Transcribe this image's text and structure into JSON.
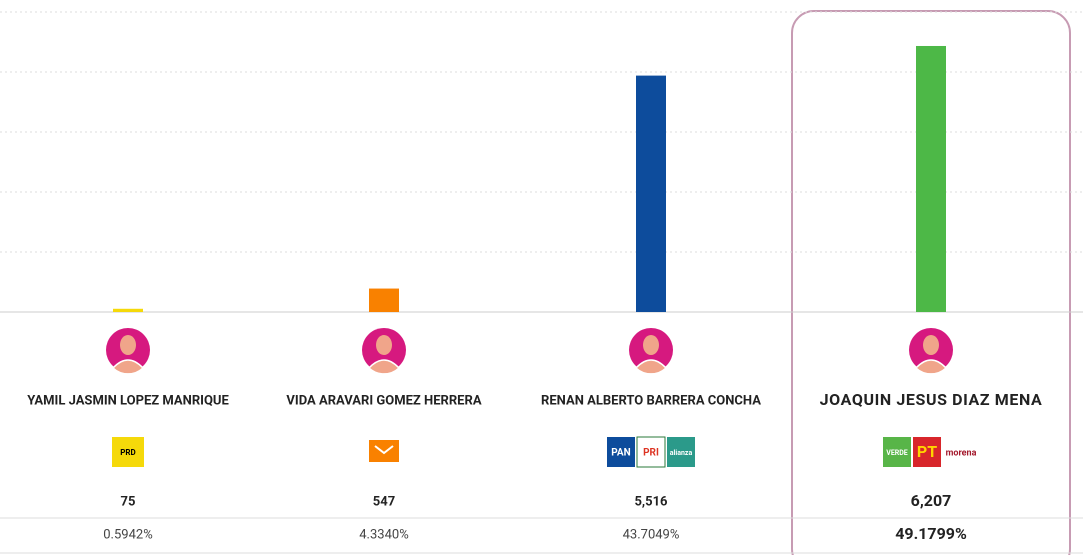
{
  "chart_data": {
    "type": "bar",
    "categories": [
      "YAMIL JASMIN LOPEZ MANRIQUE",
      "VIDA ARAVARI GOMEZ HERRERA",
      "RENAN ALBERTO BARRERA CONCHA",
      "JOAQUIN JESUS DIAZ MENA"
    ],
    "values": [
      75,
      547,
      5516,
      6207
    ],
    "value_labels": [
      "75",
      "547",
      "5,516",
      "6,207"
    ],
    "share_labels": [
      "0.5942%",
      "4.3340%",
      "43.7049%",
      "49.1799%"
    ],
    "colors": [
      "#f5d90a",
      "#f98100",
      "#0d4c9c",
      "#4db847"
    ],
    "parties": [
      [
        "PRD"
      ],
      [],
      [
        "PAN",
        "PRI",
        "alianza"
      ],
      [
        "VERDE",
        "PT",
        "morena"
      ]
    ],
    "highlight": 3,
    "ylim": [
      0,
      7000
    ],
    "yticks": [
      0,
      1400,
      2800,
      4200,
      5600,
      7000
    ],
    "grid": true
  }
}
